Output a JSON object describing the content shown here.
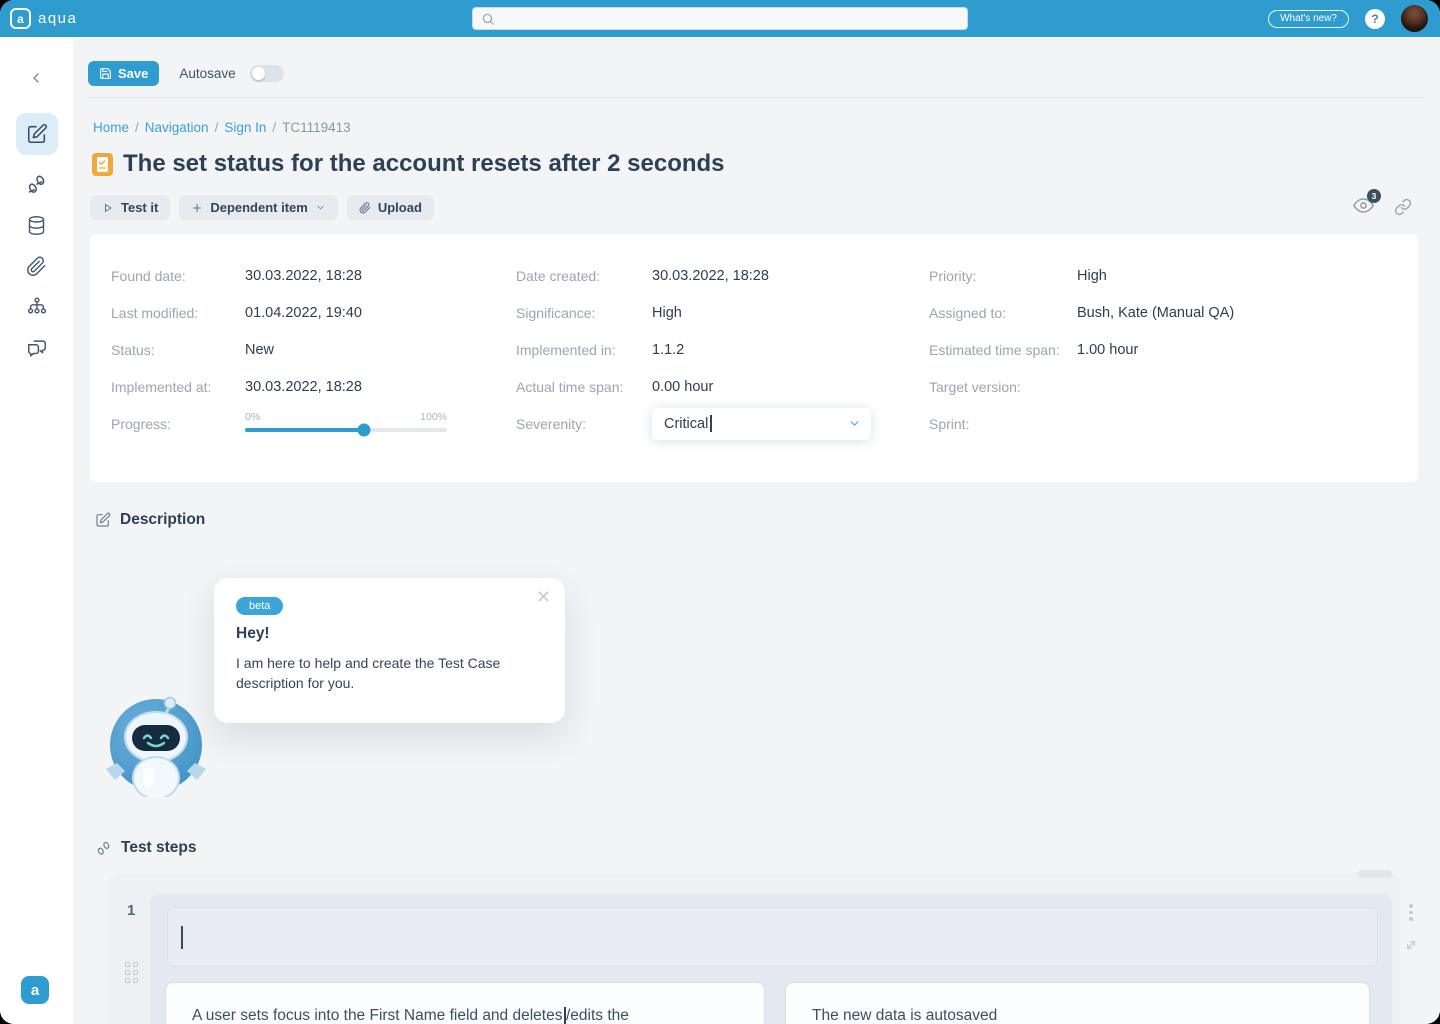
{
  "colors": {
    "accent": "#2f9cd0",
    "link": "#3fa0d6",
    "title_icon": "#efa93a",
    "beta_badge": "#3ba4d8",
    "badge_dark": "#3d4f63"
  },
  "header": {
    "brand": "aqua",
    "whats_new_label": "What's new?",
    "help_label": "?"
  },
  "toolbar": {
    "save_label": "Save",
    "autosave_label": "Autosave",
    "autosave_state": "off"
  },
  "breadcrumb": {
    "home": "Home",
    "navigation": "Navigation",
    "sign_in": "Sign In",
    "sep": "/",
    "current": "TC1119413"
  },
  "page": {
    "title": "The set status for the account resets after 2 seconds",
    "test_it_label": "Test it",
    "dependent_item_label": "Dependent item",
    "upload_label": "Upload",
    "watch_count": "3"
  },
  "details": {
    "found_date": {
      "label": "Found date:",
      "value": "30.03.2022, 18:28"
    },
    "last_modified": {
      "label": "Last modified:",
      "value": "01.04.2022, 19:40"
    },
    "status": {
      "label": "Status:",
      "value": "New"
    },
    "implemented_at": {
      "label": "Implemented at:",
      "value": "30.03.2022, 18:28"
    },
    "progress": {
      "label": "Progress:",
      "min": "0%",
      "max": "100%",
      "value_pct": 59
    },
    "date_created": {
      "label": "Date created:",
      "value": "30.03.2022, 18:28"
    },
    "significance": {
      "label": "Significance:",
      "value": "High"
    },
    "implemented_in": {
      "label": "Implemented in:",
      "value": "1.1.2"
    },
    "actual_time_span": {
      "label": "Actual time span:",
      "value": "0.00 hour"
    },
    "severenity": {
      "label": "Severenity:",
      "value": "Critical"
    },
    "priority": {
      "label": "Priority:",
      "value": "High"
    },
    "assigned_to": {
      "label": "Assigned to:",
      "value": "Bush, Kate (Manual QA)"
    },
    "estimated_time_span": {
      "label": "Estimated time span:",
      "value": "1.00 hour"
    },
    "target_version": {
      "label": "Target version:",
      "value": ""
    },
    "sprint": {
      "label": "Sprint:",
      "value": ""
    }
  },
  "description": {
    "heading": "Description",
    "assistant": {
      "badge": "beta",
      "greeting": "Hey!",
      "message": "I am here to help and create the Test Case description for you."
    }
  },
  "test_steps": {
    "heading": "Test steps",
    "step_number": "1",
    "step_description": "",
    "expected_left_a": "A user sets focus into the First Name field and deletes",
    "expected_left_b": "/edits the",
    "expected_right": "The new data is autosaved"
  }
}
